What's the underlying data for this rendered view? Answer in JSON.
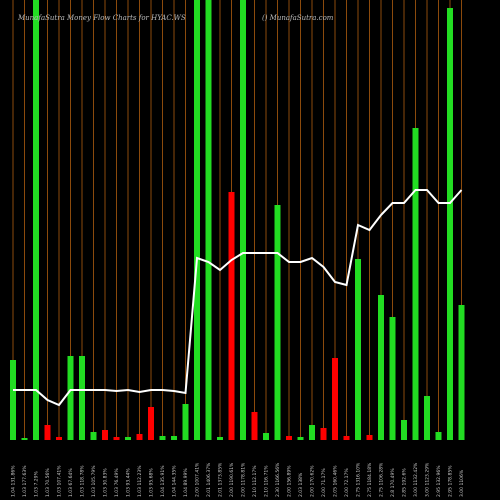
{
  "chart_data": {
    "type": "bar",
    "title": "MunafaSutra  Money Flow  Charts for HYAC.WS",
    "subtitle": "() MunafaSutra.com",
    "categories": [
      "1.04 131.86%",
      "1.03 177.63%",
      "1.03 7.29%",
      "1.03 70.56%",
      "1.03 107.41%",
      "1.03 67.64%",
      "1.03 118.78%",
      "1.03 105.79%",
      "1.03 30.83%",
      "1.03 76.49%",
      "1.03 93.44%",
      "1.03 112.23%",
      "1.03 95.68%",
      "1.04 135.91%",
      "1.04 144.35%",
      "1.04 89.99%",
      "2.00 1007.41%",
      "2.01 1406.37%",
      "2.01 1373.85%",
      "2.00 1190.61%",
      "2.00 1178.81%",
      "2.10 112.17%",
      "2.10 116.71%",
      "2.30 1166.56%",
      "2.00 156.89%",
      "2.03 138%",
      "2.00 170.62%",
      "2.00 71.17%",
      "2.05 160.46%",
      "2.00 72.17%",
      "2.75 1316.10%",
      "2.75 1184.18%",
      "2.75 1106.28%",
      "2.8 170.49%",
      "2.85 192.6%",
      "3.00 1132.42%",
      "3.00 1123.29%",
      "2.95 132.96%",
      "2.95 178.85%",
      "3.00 1106%"
    ],
    "values": [
      80,
      2,
      440,
      15,
      3,
      84,
      84,
      8,
      10,
      3,
      3,
      6,
      33,
      4,
      4,
      36,
      440,
      440,
      3,
      248,
      440,
      28,
      7,
      235,
      4,
      3,
      15,
      12,
      82,
      4,
      181,
      5,
      145,
      123,
      20,
      312,
      44,
      8,
      432,
      135
    ],
    "colors": [
      "#22dd22",
      "#22dd22",
      "#22dd22",
      "#ff0000",
      "#ff0000",
      "#22dd22",
      "#22dd22",
      "#22dd22",
      "#ff0000",
      "#ff0000",
      "#22dd22",
      "#ff0000",
      "#ff0000",
      "#22dd22",
      "#22dd22",
      "#22dd22",
      "#22dd22",
      "#22dd22",
      "#22dd22",
      "#ff0000",
      "#22dd22",
      "#ff0000",
      "#22dd22",
      "#22dd22",
      "#ff0000",
      "#22dd22",
      "#22dd22",
      "#ff0000",
      "#ff0000",
      "#ff0000",
      "#22dd22",
      "#ff0000",
      "#22dd22",
      "#22dd22",
      "#22dd22",
      "#22dd22",
      "#22dd22",
      "#22dd22",
      "#22dd22",
      "#22dd22"
    ],
    "line": {
      "color": "#ffffff",
      "values": [
        50,
        50,
        50,
        40,
        35,
        50,
        50,
        50,
        50,
        49,
        50,
        48,
        50,
        50,
        49,
        47,
        182,
        178,
        170,
        180,
        187,
        187,
        187,
        187,
        178,
        178,
        182,
        173,
        158,
        155,
        215,
        210,
        225,
        237,
        237,
        250,
        250,
        237,
        237,
        250
      ]
    },
    "gridline_color": "#8b4a0c",
    "ylim": [
      0,
      440
    ]
  }
}
